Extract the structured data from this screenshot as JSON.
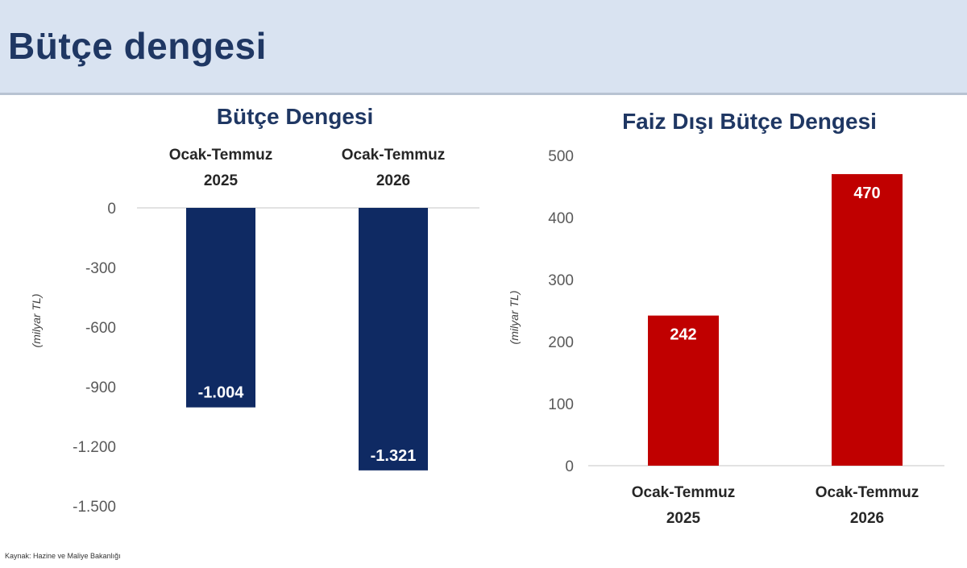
{
  "header": {
    "title": "Bütçe dengesi"
  },
  "source": "Kaynak: Hazine ve Maliye Bakanlığı",
  "colors": {
    "header_bg": "#d9e3f1",
    "title": "#1f3763",
    "bar_left": "#0f2a63",
    "bar_right": "#c00000"
  },
  "chart_data": [
    {
      "type": "bar",
      "title": "Bütçe Dengesi",
      "ylabel": "(milyar TL)",
      "categories": [
        [
          "Ocak-Temmuz",
          "2025"
        ],
        [
          "Ocak-Temmuz",
          "2026"
        ]
      ],
      "values": [
        -1004,
        -1321
      ],
      "value_labels": [
        "-1.004",
        "-1.321"
      ],
      "yticks": [
        0,
        -300,
        -600,
        -900,
        -1200,
        -1500
      ],
      "ytick_labels": [
        "0",
        "-300",
        "-600",
        "-900",
        "-1.200",
        "-1.500"
      ],
      "ylim": [
        -1500,
        0
      ],
      "category_axis_position": "top",
      "color": "#0f2a63"
    },
    {
      "type": "bar",
      "title": "Faiz Dışı Bütçe Dengesi",
      "ylabel": "(milyar TL)",
      "categories": [
        [
          "Ocak-Temmuz",
          "2025"
        ],
        [
          "Ocak-Temmuz",
          "2026"
        ]
      ],
      "values": [
        242,
        470
      ],
      "value_labels": [
        "242",
        "470"
      ],
      "yticks": [
        0,
        100,
        200,
        300,
        400,
        500
      ],
      "ytick_labels": [
        "0",
        "100",
        "200",
        "300",
        "400",
        "500"
      ],
      "ylim": [
        0,
        500
      ],
      "category_axis_position": "bottom",
      "color": "#c00000"
    }
  ]
}
